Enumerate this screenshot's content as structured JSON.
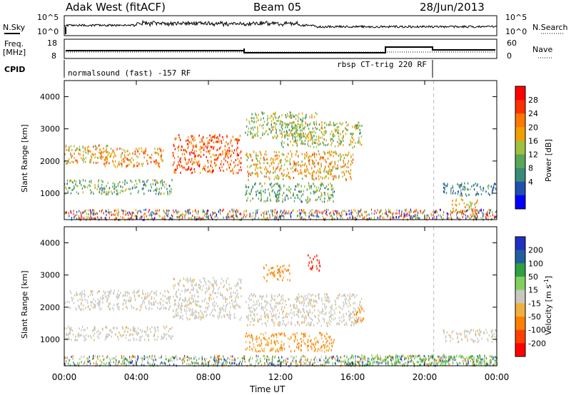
{
  "header": {
    "station": "Adak West (fitACF)",
    "beam": "Beam 05",
    "date": "28/Jun/2013"
  },
  "top_panels": {
    "nsky_label": "N.Sky",
    "nsky_ticks": [
      "10^5",
      "10^0"
    ],
    "nsearch_label": "N.Search",
    "nsearch_ticks": [
      "10^5",
      "10^0"
    ],
    "freq_label": "Freq.",
    "freq_unit": "[MHz]",
    "freq_ticks": [
      "18",
      "8"
    ],
    "nave_label": "Nave",
    "nave_ticks": [
      "60",
      "0"
    ],
    "cpid_label": "CPID",
    "cpid_mode_1": "normalsound (fast) -157 RF",
    "cpid_mode_2": "rbsp CT-trig 220 RF"
  },
  "colors": {
    "power_scale": [
      "#0000ff",
      "#2050b0",
      "#3a8a78",
      "#58a858",
      "#a0c040",
      "#f0a000",
      "#ff7800",
      "#ff3000",
      "#ff0000"
    ],
    "velocity_scale": [
      "#2030c0",
      "#2060a0",
      "#30a040",
      "#80d060",
      "#c8c8c0",
      "#f0b040",
      "#ff8000",
      "#ff4000",
      "#ff0000"
    ]
  },
  "chart_data": [
    {
      "type": "heatmap",
      "title": "",
      "xlabel": "Time UT",
      "ylabel": "Slant Range [km]",
      "colorbar_label": "Power [dB]",
      "colorbar_ticks": [
        "28",
        "24",
        "20",
        "16",
        "12",
        "8",
        "4"
      ],
      "x_ticks": [
        "00:00",
        "04:00",
        "08:00",
        "12:00",
        "16:00",
        "20:00",
        "00:00"
      ],
      "y_ticks": [
        "4000",
        "3000",
        "2000",
        "1000"
      ],
      "xlim_hours": [
        0,
        24
      ],
      "ylim_km": [
        180,
        4500
      ],
      "echo_bands": [
        {
          "t0": 0.0,
          "t1": 2.5,
          "r0": 1900,
          "r1": 2500,
          "level": 20
        },
        {
          "t0": 2.0,
          "t1": 5.5,
          "r0": 1800,
          "r1": 2400,
          "level": 22
        },
        {
          "t0": 0.0,
          "t1": 6.0,
          "r0": 950,
          "r1": 1400,
          "level": 12
        },
        {
          "t0": 6.0,
          "t1": 9.8,
          "r0": 1600,
          "r1": 2800,
          "level": 26
        },
        {
          "t0": 10.0,
          "t1": 16.0,
          "r0": 1400,
          "r1": 2300,
          "level": 20
        },
        {
          "t0": 10.0,
          "t1": 14.0,
          "r0": 2700,
          "r1": 3500,
          "level": 14
        },
        {
          "t0": 10.0,
          "t1": 15.0,
          "r0": 700,
          "r1": 1300,
          "level": 12
        },
        {
          "t0": 12.0,
          "t1": 16.5,
          "r0": 2400,
          "r1": 3200,
          "level": 16
        },
        {
          "t0": 21.0,
          "t1": 24.0,
          "r0": 900,
          "r1": 1300,
          "level": 8
        },
        {
          "t0": 21.5,
          "t1": 23.0,
          "r0": 400,
          "r1": 800,
          "level": 20
        }
      ]
    },
    {
      "type": "heatmap",
      "title": "",
      "xlabel": "Time UT",
      "ylabel": "Slant Range [km]",
      "colorbar_label": "Velocity [m s^-1]",
      "colorbar_ticks": [
        "200",
        "100",
        "50",
        "15",
        "-15",
        "-50",
        "-100",
        "-200"
      ],
      "x_ticks": [
        "00:00",
        "04:00",
        "08:00",
        "12:00",
        "16:00",
        "20:00",
        "00:00"
      ],
      "y_ticks": [
        "4000",
        "3000",
        "2000",
        "1000"
      ],
      "xlim_hours": [
        0,
        24
      ],
      "ylim_km": [
        180,
        4500
      ],
      "echo_bands": [
        {
          "t0": 0.0,
          "t1": 6.0,
          "r0": 1900,
          "r1": 2500,
          "velocity": 0
        },
        {
          "t0": 0.0,
          "t1": 6.0,
          "r0": 950,
          "r1": 1400,
          "velocity": 0
        },
        {
          "t0": 6.0,
          "t1": 9.8,
          "r0": 1600,
          "r1": 2900,
          "velocity": 0
        },
        {
          "t0": 10.0,
          "t1": 16.5,
          "r0": 1400,
          "r1": 2400,
          "velocity": 0
        },
        {
          "t0": 10.0,
          "t1": 15.0,
          "r0": 600,
          "r1": 1200,
          "velocity": -80
        },
        {
          "t0": 11.0,
          "t1": 12.5,
          "r0": 2800,
          "r1": 3300,
          "velocity": -40
        },
        {
          "t0": 13.5,
          "t1": 14.2,
          "r0": 3100,
          "r1": 3600,
          "velocity": -200
        },
        {
          "t0": 16.0,
          "t1": 16.6,
          "r0": 1500,
          "r1": 2000,
          "velocity": -60
        },
        {
          "t0": 21.0,
          "t1": 24.0,
          "r0": 900,
          "r1": 1300,
          "velocity": 0
        },
        {
          "t0": 15.5,
          "t1": 24.0,
          "r0": 180,
          "r1": 500,
          "velocity": 30
        }
      ]
    }
  ]
}
